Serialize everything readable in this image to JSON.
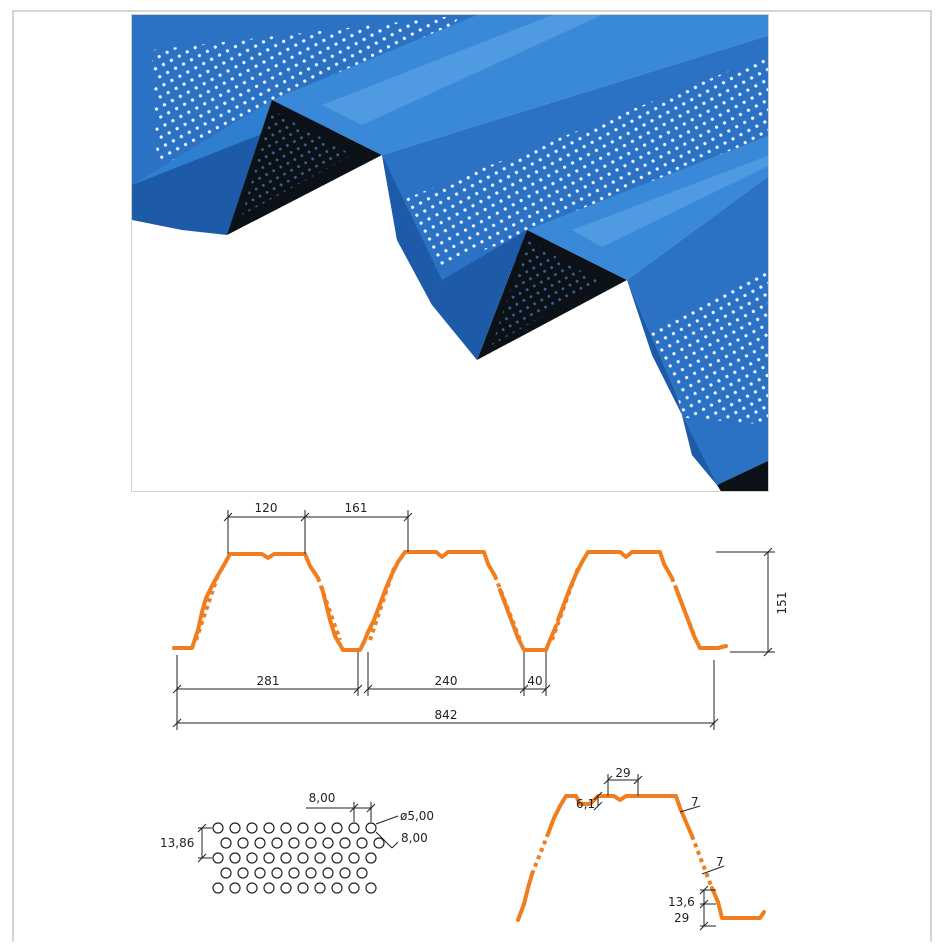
{
  "photo": {
    "description_icon": "perforated-trapezoidal-sheet-render",
    "colors": {
      "sheet_dark": "#1f63b6",
      "sheet_mid": "#2f7fd0",
      "sheet_light": "#5aa2e6",
      "shadow": "#0c1118"
    }
  },
  "profile_dims": {
    "top_flange": "120",
    "pitch_half": "161",
    "height": "151",
    "segment_a": "281",
    "segment_b": "240",
    "bottom_flange": "40",
    "total_width": "842"
  },
  "perforation_dims": {
    "h_spacing": "8,00",
    "diameter": "ø5,00",
    "diag_spacing": "8,00",
    "row_spacing": "13,86"
  },
  "detail_dims": {
    "rib_width": "29",
    "rib_depth": "6,1",
    "web_offset_top": "7",
    "web_offset_bottom": "7",
    "bottom_rib": "13,6",
    "bottom_len": "29"
  },
  "colors": {
    "profile_line": "#f07d1e",
    "dimension_line": "#222222"
  }
}
